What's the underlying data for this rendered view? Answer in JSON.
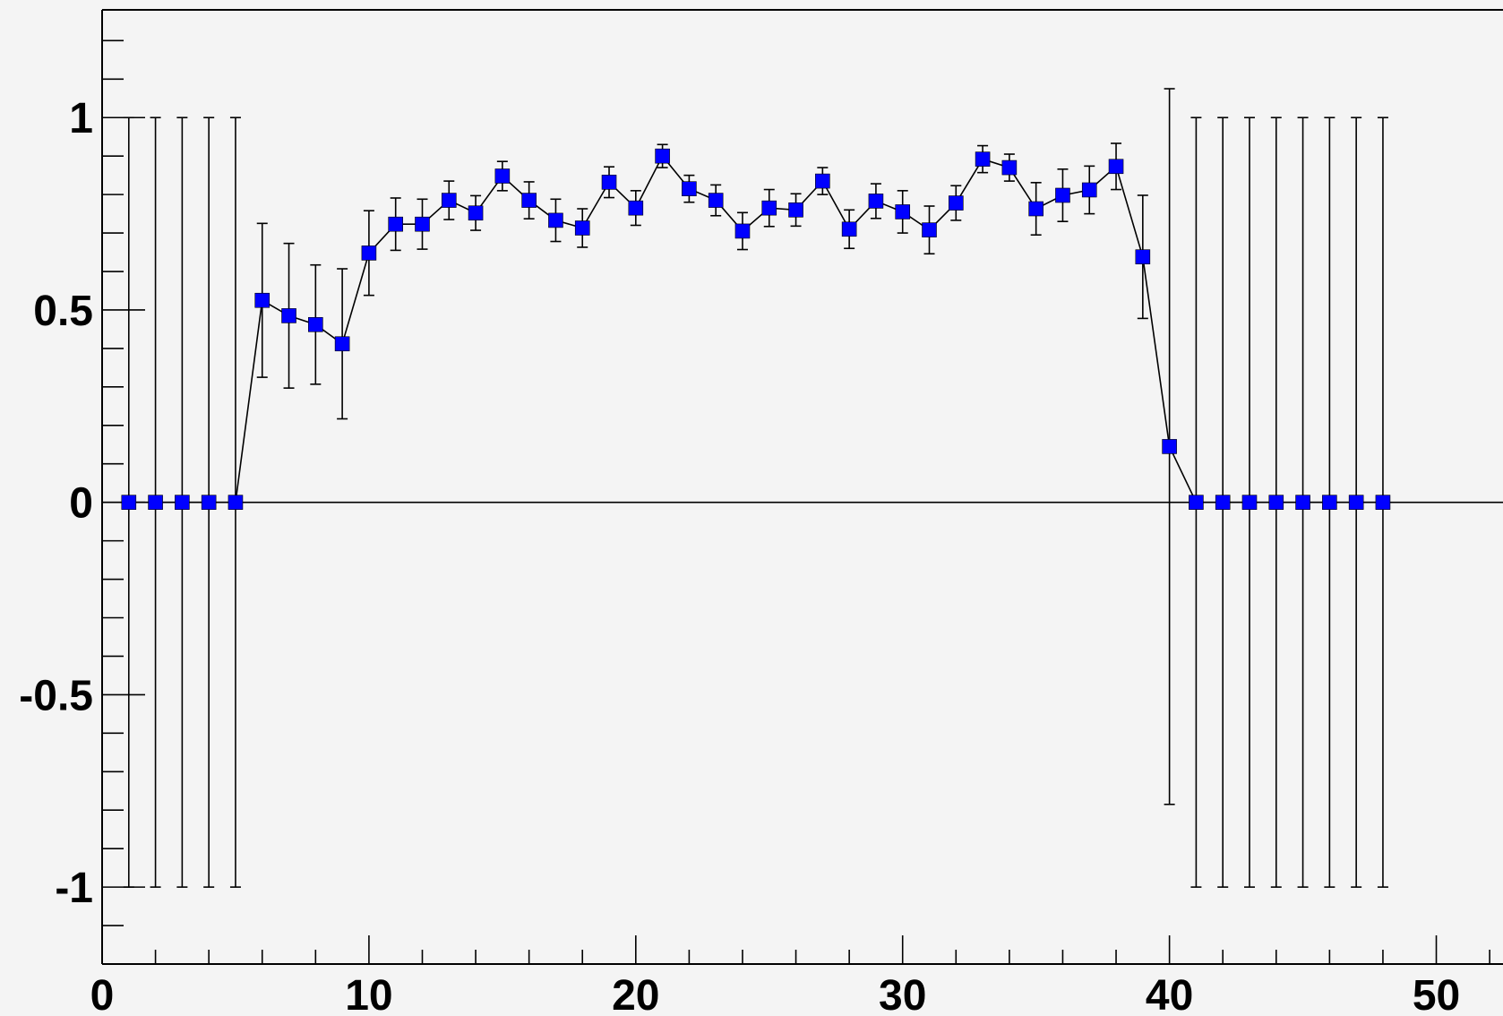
{
  "chart_data": {
    "type": "scatter",
    "title": "",
    "xlabel": "",
    "ylabel": "",
    "xlim": [
      0,
      52.5
    ],
    "ylim": [
      -1.2,
      1.28
    ],
    "grid": false,
    "legend": "none",
    "colors": {
      "background": "#f4f4f4",
      "marker": "#0000ff",
      "line": "#000000"
    },
    "x_ticks": [
      "0",
      "10",
      "20",
      "30",
      "40",
      "50"
    ],
    "y_ticks": [
      "-1",
      "-0.5",
      "0",
      "0.5",
      "1"
    ],
    "x_tick_values": [
      0,
      10,
      20,
      30,
      40,
      50
    ],
    "y_tick_values": [
      -1,
      -0.5,
      0,
      0.5,
      1
    ],
    "series": [
      {
        "marker": "square",
        "connect": true,
        "x": [
          1,
          2,
          3,
          4,
          5,
          6,
          7,
          8,
          9,
          10,
          11,
          12,
          13,
          14,
          15,
          16,
          17,
          18,
          19,
          20,
          21,
          22,
          23,
          24,
          25,
          26,
          27,
          28,
          29,
          30,
          31,
          32,
          33,
          34,
          35,
          36,
          37,
          38,
          39,
          40,
          41,
          42,
          43,
          44,
          45,
          46,
          47,
          48
        ],
        "y": [
          0,
          0,
          0,
          0,
          0,
          0.525,
          0.485,
          0.462,
          0.412,
          0.648,
          0.723,
          0.723,
          0.785,
          0.752,
          0.848,
          0.785,
          0.733,
          0.713,
          0.832,
          0.765,
          0.9,
          0.815,
          0.785,
          0.705,
          0.765,
          0.76,
          0.835,
          0.71,
          0.783,
          0.755,
          0.708,
          0.778,
          0.892,
          0.87,
          0.763,
          0.798,
          0.812,
          0.873,
          0.638,
          0.145,
          0,
          0,
          0,
          0,
          0,
          0,
          0,
          0
        ],
        "err": [
          1,
          1,
          1,
          1,
          1,
          0.2,
          0.188,
          0.155,
          0.195,
          0.11,
          0.068,
          0.065,
          0.05,
          0.045,
          0.038,
          0.048,
          0.055,
          0.05,
          0.04,
          0.045,
          0.03,
          0.035,
          0.04,
          0.048,
          0.048,
          0.042,
          0.035,
          0.05,
          0.045,
          0.055,
          0.062,
          0.045,
          0.035,
          0.035,
          0.068,
          0.068,
          0.062,
          0.06,
          0.16,
          0.93,
          1,
          1,
          1,
          1,
          1,
          1,
          1,
          1
        ]
      }
    ]
  }
}
